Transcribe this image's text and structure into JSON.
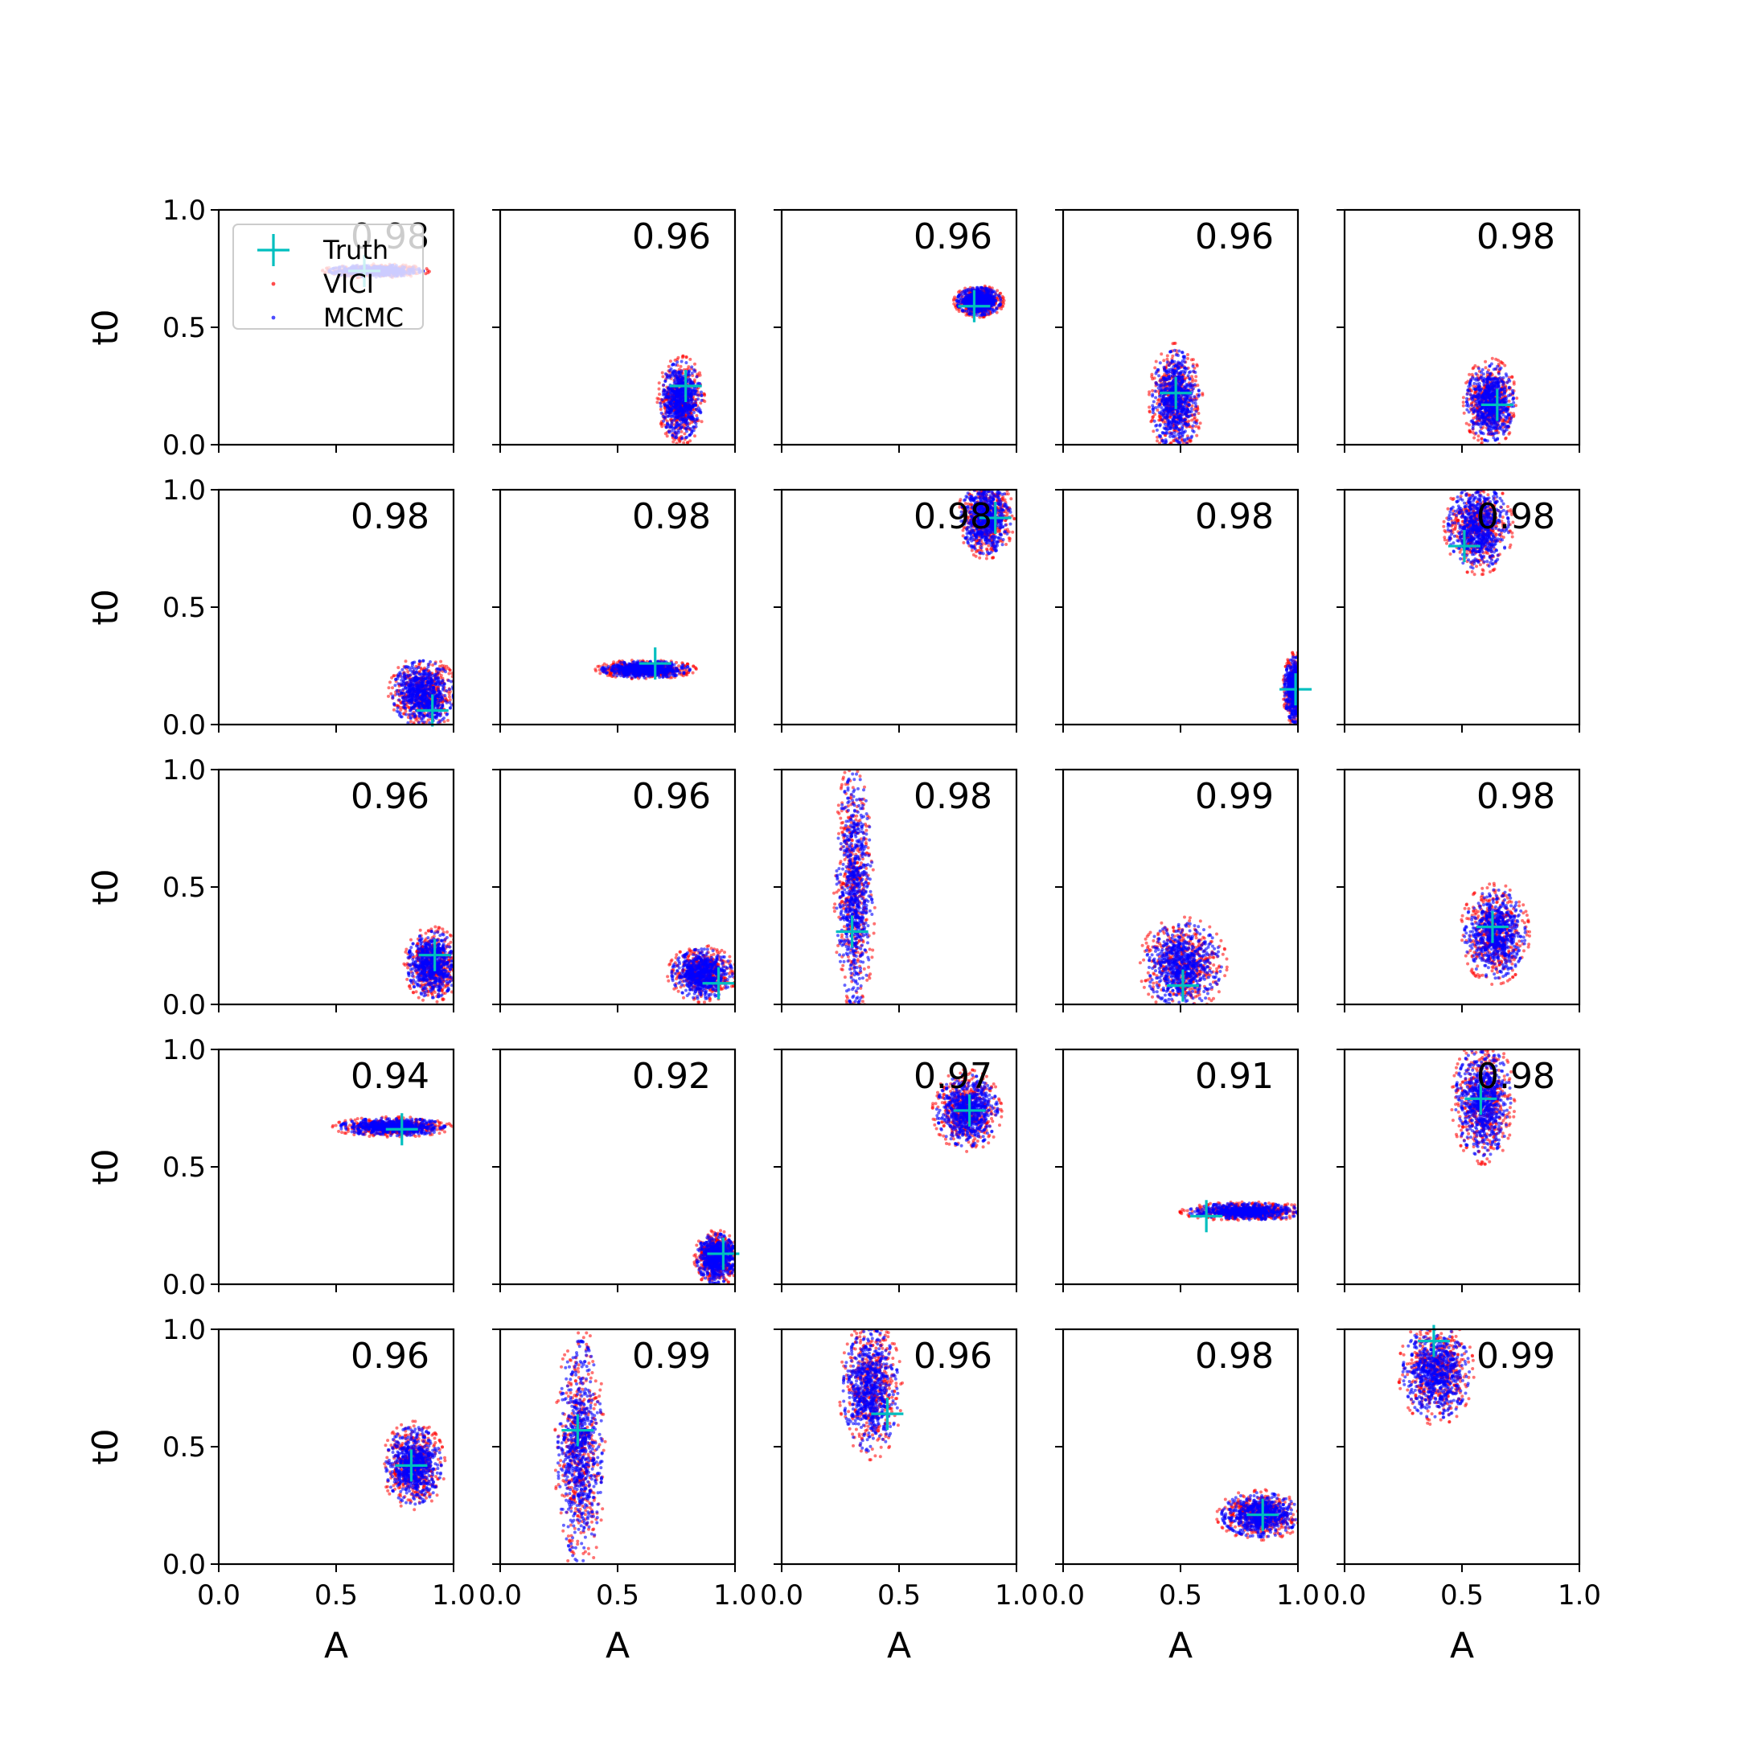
{
  "legend": {
    "placement": "upper-left of first panel",
    "entries": [
      {
        "label": "Truth",
        "marker": "plus",
        "color": "#00bfbf"
      },
      {
        "label": "VICI",
        "marker": "dot",
        "color": "#ff0000"
      },
      {
        "label": "MCMC",
        "marker": "dot",
        "color": "#0000ff"
      }
    ]
  },
  "chart_data": {
    "type": "scatter",
    "layout": {
      "rows": 5,
      "cols": 5
    },
    "xlabel": "A",
    "ylabel": "t0",
    "xlim": [
      0.0,
      1.0
    ],
    "ylim": [
      0.0,
      1.0
    ],
    "xticks": [
      "0.0",
      "0.5",
      "1.0"
    ],
    "yticks": [
      "0.0",
      "0.5",
      "1.0"
    ],
    "grid": false,
    "series": [
      {
        "name": "Truth",
        "color": "#00bfbf",
        "marker": "plus"
      },
      {
        "name": "VICI",
        "color": "#ff0000",
        "marker": "dot"
      },
      {
        "name": "MCMC",
        "color": "#0000ff",
        "marker": "dot"
      }
    ],
    "panels": [
      {
        "score": "0.98",
        "truth": [
          0.62,
          0.74
        ],
        "blob": {
          "cx": 0.67,
          "cy": 0.74,
          "rx": 0.17,
          "ry": 0.022
        }
      },
      {
        "score": "0.96",
        "truth": [
          0.79,
          0.25
        ],
        "blob": {
          "cx": 0.77,
          "cy": 0.19,
          "rx": 0.075,
          "ry": 0.14
        }
      },
      {
        "score": "0.96",
        "truth": [
          0.82,
          0.59
        ],
        "blob": {
          "cx": 0.84,
          "cy": 0.61,
          "rx": 0.08,
          "ry": 0.05
        }
      },
      {
        "score": "0.96",
        "truth": [
          0.48,
          0.22
        ],
        "blob": {
          "cx": 0.48,
          "cy": 0.19,
          "rx": 0.085,
          "ry": 0.18
        }
      },
      {
        "score": "0.98",
        "truth": [
          0.65,
          0.17
        ],
        "blob": {
          "cx": 0.62,
          "cy": 0.18,
          "rx": 0.085,
          "ry": 0.14
        }
      },
      {
        "score": "0.98",
        "truth": [
          0.91,
          0.06
        ],
        "blob": {
          "cx": 0.87,
          "cy": 0.13,
          "rx": 0.11,
          "ry": 0.12
        }
      },
      {
        "score": "0.98",
        "truth": [
          0.66,
          0.26
        ],
        "blob": {
          "cx": 0.62,
          "cy": 0.235,
          "rx": 0.16,
          "ry": 0.03
        }
      },
      {
        "score": "0.98",
        "truth": [
          0.91,
          0.88
        ],
        "blob": {
          "cx": 0.87,
          "cy": 0.88,
          "rx": 0.09,
          "ry": 0.13
        }
      },
      {
        "score": "0.98",
        "truth": [
          0.99,
          0.15
        ],
        "blob": {
          "cx": 0.99,
          "cy": 0.15,
          "rx": 0.04,
          "ry": 0.12
        }
      },
      {
        "score": "0.98",
        "truth": [
          0.51,
          0.76
        ],
        "blob": {
          "cx": 0.57,
          "cy": 0.84,
          "rx": 0.11,
          "ry": 0.15
        }
      },
      {
        "score": "0.96",
        "truth": [
          0.92,
          0.21
        ],
        "blob": {
          "cx": 0.91,
          "cy": 0.17,
          "rx": 0.09,
          "ry": 0.12
        }
      },
      {
        "score": "0.96",
        "truth": [
          0.93,
          0.09
        ],
        "blob": {
          "cx": 0.86,
          "cy": 0.13,
          "rx": 0.11,
          "ry": 0.09
        }
      },
      {
        "score": "0.98",
        "truth": [
          0.3,
          0.31
        ],
        "blob": {
          "cx": 0.31,
          "cy": 0.49,
          "rx": 0.065,
          "ry": 0.42
        }
      },
      {
        "score": "0.99",
        "truth": [
          0.51,
          0.08
        ],
        "blob": {
          "cx": 0.51,
          "cy": 0.17,
          "rx": 0.14,
          "ry": 0.15
        }
      },
      {
        "score": "0.98",
        "truth": [
          0.63,
          0.33
        ],
        "blob": {
          "cx": 0.64,
          "cy": 0.3,
          "rx": 0.11,
          "ry": 0.16
        }
      },
      {
        "score": "0.94",
        "truth": [
          0.78,
          0.66
        ],
        "blob": {
          "cx": 0.74,
          "cy": 0.67,
          "rx": 0.19,
          "ry": 0.032
        }
      },
      {
        "score": "0.92",
        "truth": [
          0.95,
          0.13
        ],
        "blob": {
          "cx": 0.92,
          "cy": 0.11,
          "rx": 0.07,
          "ry": 0.09
        }
      },
      {
        "score": "0.97",
        "truth": [
          0.8,
          0.74
        ],
        "blob": {
          "cx": 0.79,
          "cy": 0.74,
          "rx": 0.11,
          "ry": 0.13
        }
      },
      {
        "score": "0.91",
        "truth": [
          0.61,
          0.29
        ],
        "blob": {
          "cx": 0.78,
          "cy": 0.31,
          "rx": 0.21,
          "ry": 0.03
        }
      },
      {
        "score": "0.98",
        "truth": [
          0.58,
          0.79
        ],
        "blob": {
          "cx": 0.59,
          "cy": 0.78,
          "rx": 0.1,
          "ry": 0.2
        }
      },
      {
        "score": "0.96",
        "truth": [
          0.82,
          0.42
        ],
        "blob": {
          "cx": 0.83,
          "cy": 0.42,
          "rx": 0.1,
          "ry": 0.14
        }
      },
      {
        "score": "0.99",
        "truth": [
          0.33,
          0.57
        ],
        "blob": {
          "cx": 0.34,
          "cy": 0.48,
          "rx": 0.08,
          "ry": 0.4
        }
      },
      {
        "score": "0.96",
        "truth": [
          0.45,
          0.64
        ],
        "blob": {
          "cx": 0.38,
          "cy": 0.74,
          "rx": 0.1,
          "ry": 0.22
        }
      },
      {
        "score": "0.98",
        "truth": [
          0.85,
          0.21
        ],
        "blob": {
          "cx": 0.84,
          "cy": 0.21,
          "rx": 0.14,
          "ry": 0.08
        }
      },
      {
        "score": "0.99",
        "truth": [
          0.38,
          0.95
        ],
        "blob": {
          "cx": 0.39,
          "cy": 0.82,
          "rx": 0.12,
          "ry": 0.17
        }
      }
    ]
  }
}
